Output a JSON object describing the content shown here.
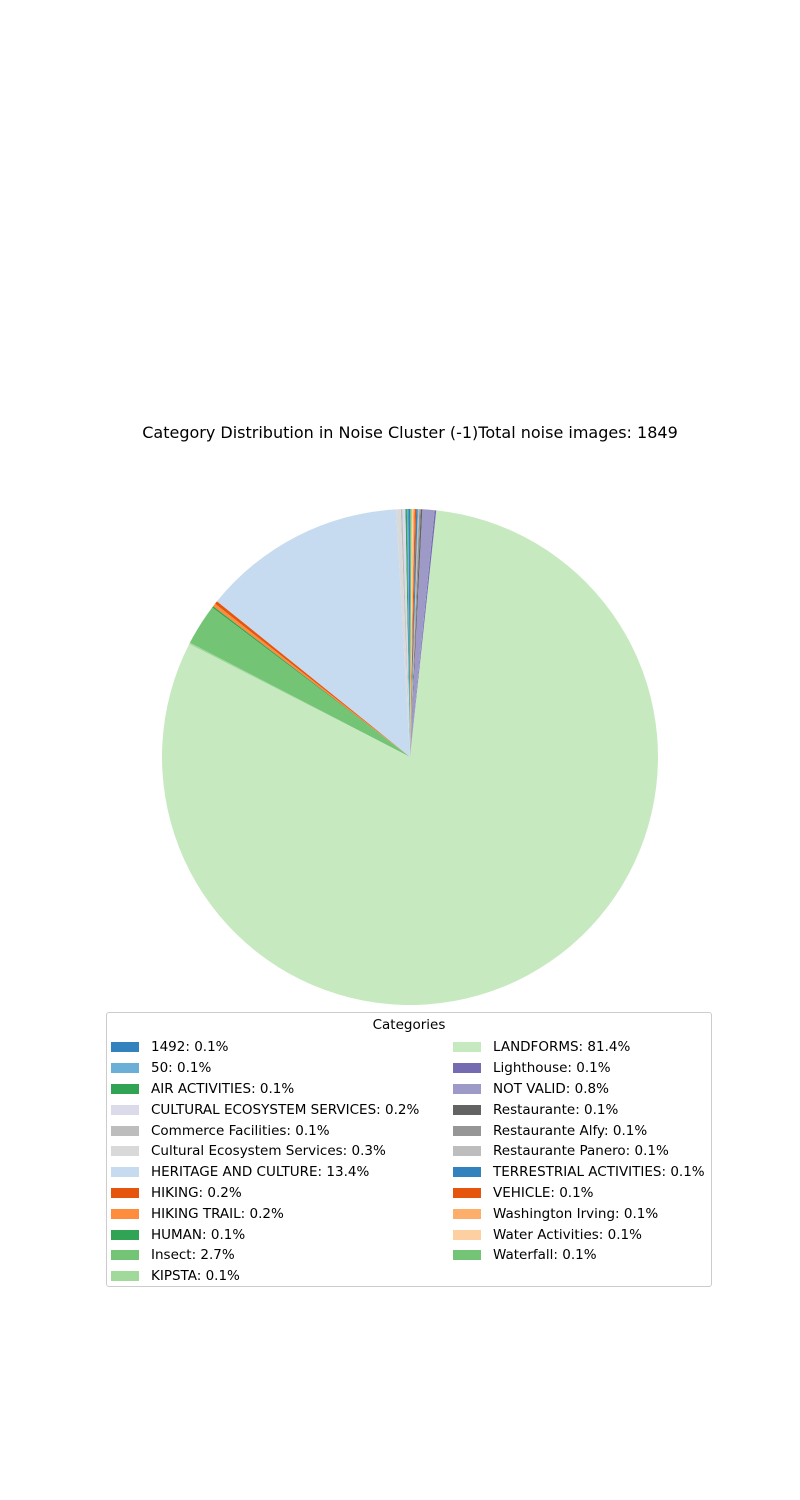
{
  "chart_data": {
    "type": "pie",
    "title": "Category Distribution in Noise Cluster (-1)Total noise images: 1849",
    "legend_title": "Categories",
    "legend_placement": "bottom-center",
    "slices": [
      {
        "label": "1492: 0.1%",
        "value": 0.1,
        "color": "#3182bd"
      },
      {
        "label": "50: 0.1%",
        "value": 0.1,
        "color": "#6baed6"
      },
      {
        "label": "AIR ACTIVITIES: 0.1%",
        "value": 0.1,
        "color": "#31a354"
      },
      {
        "label": "CULTURAL ECOSYSTEM SERVICES: 0.2%",
        "value": 0.2,
        "color": "#dadaeb"
      },
      {
        "label": "Commerce Facilities: 0.1%",
        "value": 0.1,
        "color": "#bdbdbd"
      },
      {
        "label": "Cultural Ecosystem Services: 0.3%",
        "value": 0.3,
        "color": "#d9d9d9"
      },
      {
        "label": "HERITAGE AND CULTURE: 13.4%",
        "value": 13.4,
        "color": "#c6dbef"
      },
      {
        "label": "HIKING: 0.2%",
        "value": 0.2,
        "color": "#e6550d"
      },
      {
        "label": "HIKING TRAIL: 0.2%",
        "value": 0.2,
        "color": "#fd8d3c"
      },
      {
        "label": "HUMAN: 0.1%",
        "value": 0.1,
        "color": "#31a354"
      },
      {
        "label": "Insect: 2.7%",
        "value": 2.7,
        "color": "#74c476"
      },
      {
        "label": "KIPSTA: 0.1%",
        "value": 0.1,
        "color": "#a1d99b"
      },
      {
        "label": "LANDFORMS: 81.4%",
        "value": 81.4,
        "color": "#c7e9c0"
      },
      {
        "label": "Lighthouse: 0.1%",
        "value": 0.1,
        "color": "#756bb1"
      },
      {
        "label": "NOT VALID: 0.8%",
        "value": 0.8,
        "color": "#9e9ac8"
      },
      {
        "label": "Restaurante: 0.1%",
        "value": 0.1,
        "color": "#636363"
      },
      {
        "label": "Restaurante Alfy: 0.1%",
        "value": 0.1,
        "color": "#969696"
      },
      {
        "label": "Restaurante Panero: 0.1%",
        "value": 0.1,
        "color": "#bdbdbd"
      },
      {
        "label": "TERRESTRIAL ACTIVITIES: 0.1%",
        "value": 0.1,
        "color": "#3182bd"
      },
      {
        "label": "VEHICLE: 0.1%",
        "value": 0.1,
        "color": "#e6550d"
      },
      {
        "label": "Washington Irving: 0.1%",
        "value": 0.1,
        "color": "#fdae6b"
      },
      {
        "label": "Water Activities: 0.1%",
        "value": 0.1,
        "color": "#fdd0a2"
      },
      {
        "label": "Waterfall: 0.1%",
        "value": 0.1,
        "color": "#74c476"
      }
    ]
  }
}
